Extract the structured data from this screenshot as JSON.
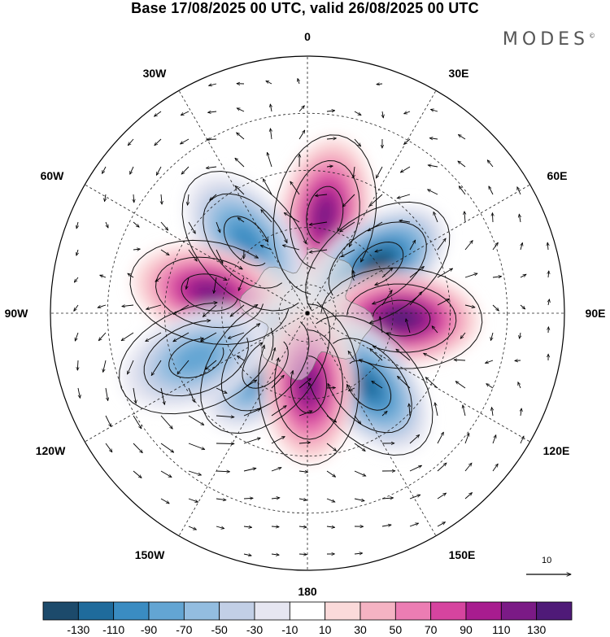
{
  "title": "Base 17/08/2025 00 UTC, valid 26/08/2025 00 UTC",
  "brand": "MODES",
  "brand_mark": "©",
  "longitude_labels": [
    "0",
    "30E",
    "60E",
    "90E",
    "120E",
    "150E",
    "180",
    "150W",
    "120W",
    "90W",
    "60W",
    "30W"
  ],
  "reference_vector": {
    "label": "10",
    "magnitude": 10
  },
  "colorbar": {
    "labels": [
      "-130",
      "-110",
      "-90",
      "-70",
      "-50",
      "-30",
      "-10",
      "10",
      "30",
      "50",
      "70",
      "90",
      "110",
      "130"
    ],
    "colors": [
      "#1c4a6b",
      "#1f6b9c",
      "#3a8cc2",
      "#63a5d3",
      "#93bde0",
      "#c2cfe6",
      "#e6e6f1",
      "#ffffff",
      "#fbdada",
      "#f5b3c3",
      "#ec7db3",
      "#d6449f",
      "#a81c8f",
      "#7b1a86",
      "#4f1a78"
    ]
  },
  "anomaly_centers": [
    {
      "id": "pos-north",
      "sign": "positive",
      "value": 110,
      "lon": 10,
      "lat": -55
    },
    {
      "id": "neg-northwest",
      "sign": "negative",
      "value": -90,
      "lon": -40,
      "lat": -57
    },
    {
      "id": "neg-northeast",
      "sign": "negative",
      "value": -130,
      "lon": 55,
      "lat": -60
    },
    {
      "id": "pos-east",
      "sign": "positive",
      "value": 130,
      "lon": 93,
      "lat": -57
    },
    {
      "id": "pos-west",
      "sign": "positive",
      "value": 110,
      "lon": -78,
      "lat": -55
    },
    {
      "id": "neg-southeast",
      "sign": "negative",
      "value": -110,
      "lon": 140,
      "lat": -57
    },
    {
      "id": "neg-southwest",
      "sign": "negative",
      "value": -110,
      "lon": -140,
      "lat": -67
    },
    {
      "id": "pos-south",
      "sign": "positive",
      "value": 110,
      "lon": 179,
      "lat": -65
    },
    {
      "id": "neg-farwest",
      "sign": "negative",
      "value": -70,
      "lon": -112,
      "lat": -48
    }
  ]
}
